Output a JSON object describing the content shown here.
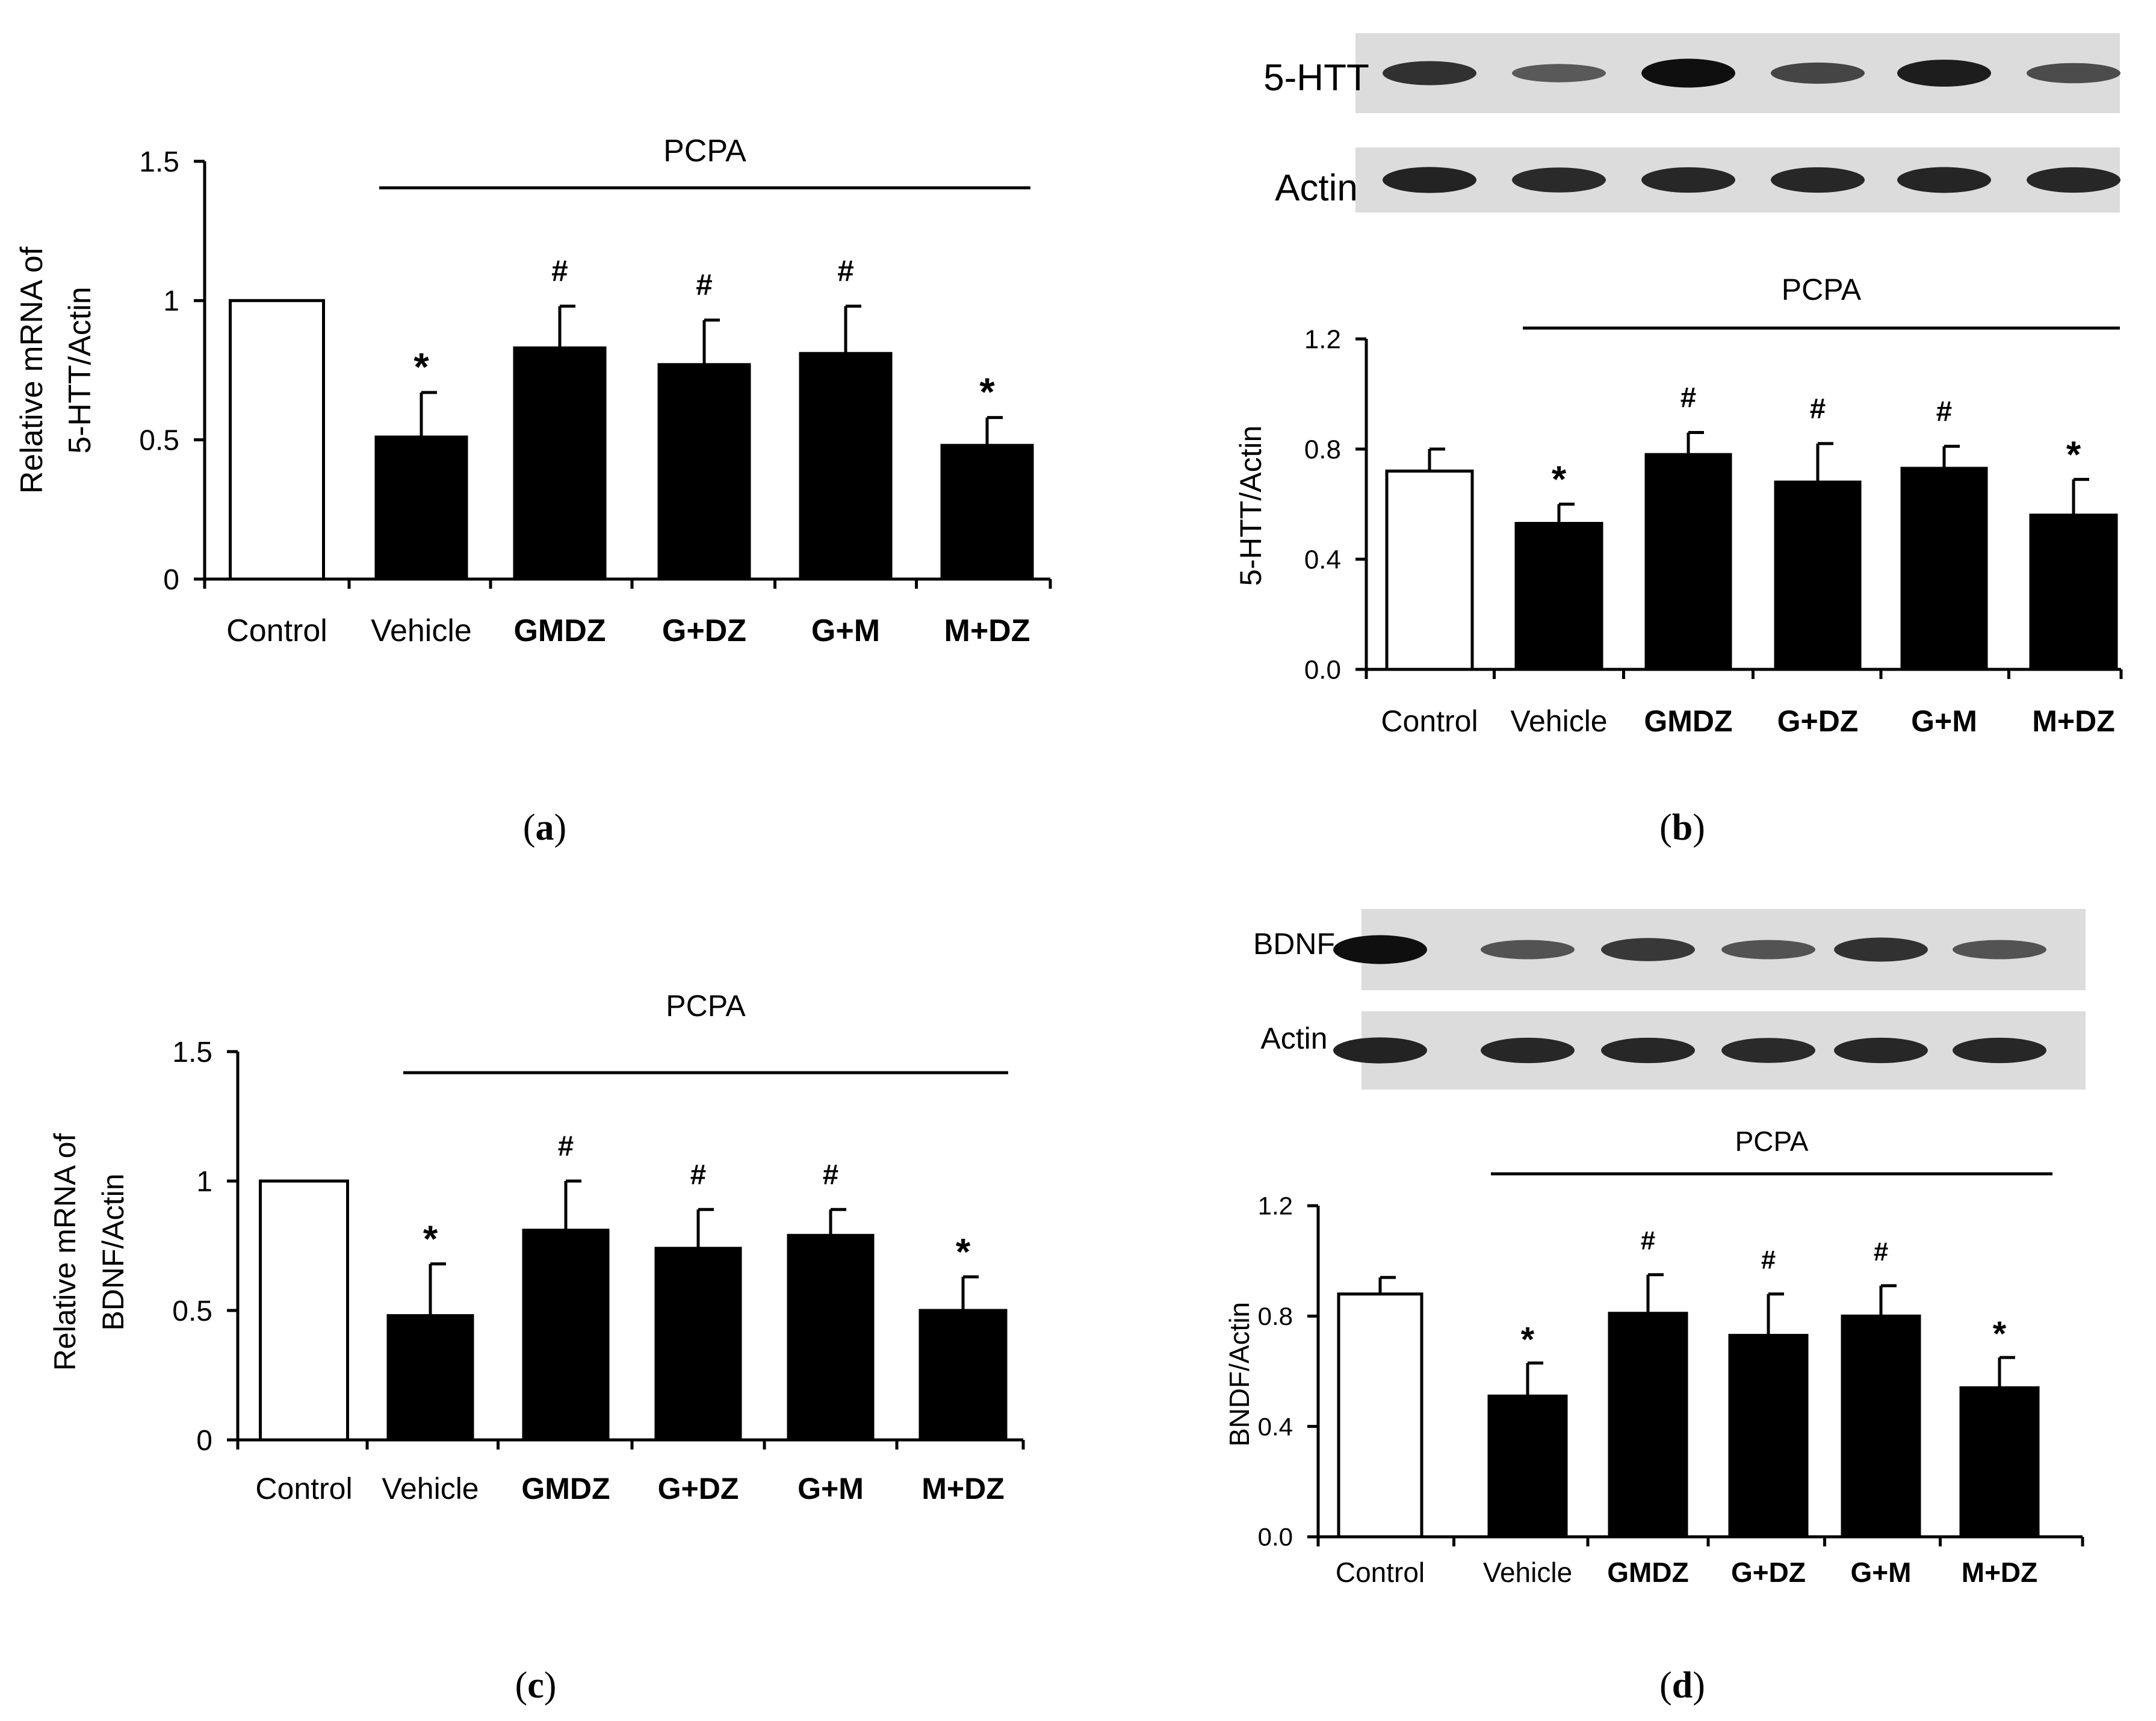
{
  "chart_data": [
    {
      "id": "a",
      "type": "bar",
      "panel_label": "a",
      "ylabel_lines": [
        "Relative mRNA of",
        "5-HTT/Actin"
      ],
      "categories": [
        "Control",
        "Vehicle",
        "GMDZ",
        "G+DZ",
        "G+M",
        "M+DZ"
      ],
      "bold_categories": [
        false,
        false,
        true,
        true,
        true,
        true
      ],
      "values": [
        1.0,
        0.51,
        0.83,
        0.77,
        0.81,
        0.48
      ],
      "errors": [
        0.0,
        0.16,
        0.15,
        0.16,
        0.17,
        0.1
      ],
      "bar_colors": [
        "#ffffff",
        "#000000",
        "#000000",
        "#000000",
        "#000000",
        "#000000"
      ],
      "markers": [
        "",
        "*",
        "#",
        "#",
        "#",
        "*"
      ],
      "ylim": [
        0,
        1.5
      ],
      "yticks": [
        "0",
        "0.5",
        "1",
        "1.5"
      ],
      "ytick_values": [
        0,
        0.5,
        1,
        1.5
      ],
      "group_label": "PCPA",
      "group_span": [
        1,
        5
      ]
    },
    {
      "id": "b",
      "type": "bar",
      "panel_label": "b",
      "ylabel_lines": [
        "5-HTT/Actin"
      ],
      "categories": [
        "Control",
        "Vehicle",
        "GMDZ",
        "G+DZ",
        "G+M",
        "M+DZ"
      ],
      "bold_categories": [
        false,
        false,
        true,
        true,
        true,
        true
      ],
      "values": [
        0.72,
        0.53,
        0.78,
        0.68,
        0.73,
        0.56
      ],
      "errors": [
        0.08,
        0.07,
        0.08,
        0.14,
        0.08,
        0.13
      ],
      "bar_colors": [
        "#ffffff",
        "#000000",
        "#000000",
        "#000000",
        "#000000",
        "#000000"
      ],
      "markers": [
        "",
        "*",
        "#",
        "#",
        "#",
        "*"
      ],
      "ylim": [
        0,
        1.2
      ],
      "yticks": [
        "0.0",
        "0.4",
        "0.8",
        "1.2"
      ],
      "ytick_values": [
        0,
        0.4,
        0.8,
        1.2
      ],
      "group_label": "PCPA",
      "group_span": [
        1,
        5
      ],
      "blots": [
        {
          "label": "5-HTT",
          "intensity": [
            0.75,
            0.45,
            1.0,
            0.6,
            0.9,
            0.55
          ]
        },
        {
          "label": "Actin",
          "intensity": [
            0.85,
            0.8,
            0.82,
            0.82,
            0.84,
            0.82
          ]
        }
      ]
    },
    {
      "id": "c",
      "type": "bar",
      "panel_label": "c",
      "ylabel_lines": [
        "Relative mRNA of",
        "BDNF/Actin"
      ],
      "categories": [
        "Control",
        "Vehicle",
        "GMDZ",
        "G+DZ",
        "G+M",
        "M+DZ"
      ],
      "bold_categories": [
        false,
        false,
        true,
        true,
        true,
        true
      ],
      "values": [
        1.0,
        0.48,
        0.81,
        0.74,
        0.79,
        0.5
      ],
      "errors": [
        0.0,
        0.2,
        0.19,
        0.15,
        0.1,
        0.13
      ],
      "bar_colors": [
        "#ffffff",
        "#000000",
        "#000000",
        "#000000",
        "#000000",
        "#000000"
      ],
      "markers": [
        "",
        "*",
        "#",
        "#",
        "#",
        "*"
      ],
      "ylim": [
        0,
        1.5
      ],
      "yticks": [
        "0",
        "0.5",
        "1",
        "1.5"
      ],
      "ytick_values": [
        0,
        0.5,
        1,
        1.5
      ],
      "group_label": "PCPA",
      "group_span": [
        1,
        5
      ]
    },
    {
      "id": "d",
      "type": "bar",
      "panel_label": "d",
      "ylabel_lines": [
        "BNDF/Actin"
      ],
      "categories": [
        "Control",
        "Vehicle",
        "GMDZ",
        "G+DZ",
        "G+M",
        "M+DZ"
      ],
      "bold_categories": [
        false,
        false,
        true,
        true,
        true,
        true
      ],
      "values": [
        0.88,
        0.51,
        0.81,
        0.73,
        0.8,
        0.54
      ],
      "errors": [
        0.06,
        0.12,
        0.14,
        0.15,
        0.11,
        0.11
      ],
      "bar_colors": [
        "#ffffff",
        "#000000",
        "#000000",
        "#000000",
        "#000000",
        "#000000"
      ],
      "markers": [
        "",
        "*",
        "#",
        "#",
        "#",
        "*"
      ],
      "ylim": [
        0,
        1.2
      ],
      "yticks": [
        "0.0",
        "0.4",
        "0.8",
        "1.2"
      ],
      "ytick_values": [
        0,
        0.4,
        0.8,
        1.2
      ],
      "group_label": "PCPA",
      "group_span": [
        1,
        5
      ],
      "blots": [
        {
          "label": "BDNF",
          "intensity": [
            1.0,
            0.5,
            0.7,
            0.5,
            0.75,
            0.5
          ]
        },
        {
          "label": "Actin",
          "intensity": [
            0.85,
            0.82,
            0.82,
            0.8,
            0.82,
            0.82
          ]
        }
      ]
    }
  ]
}
